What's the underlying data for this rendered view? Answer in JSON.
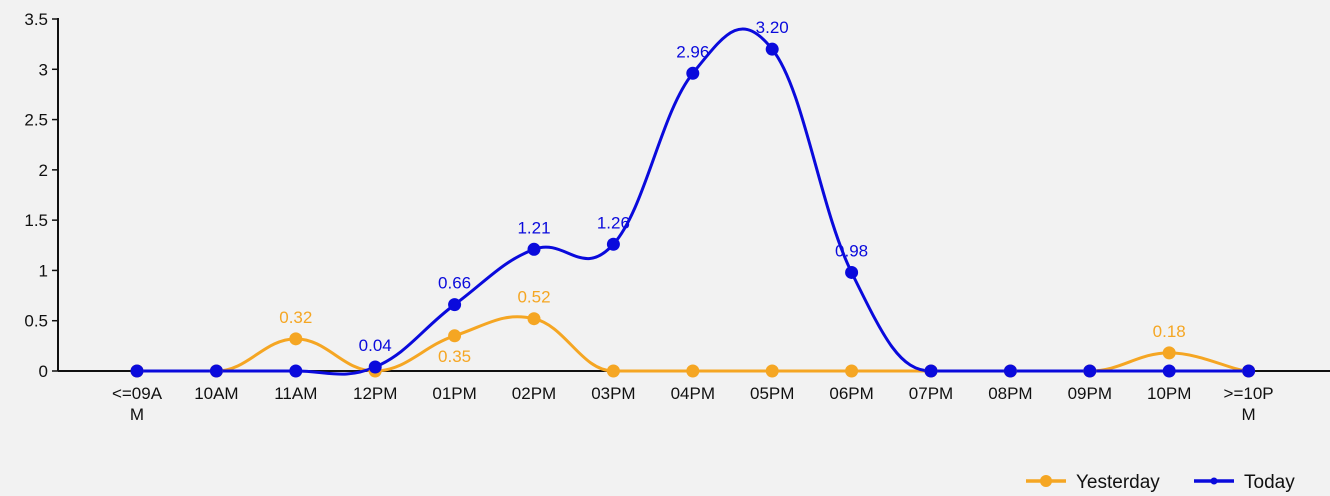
{
  "chart_data": {
    "type": "line",
    "title": "",
    "xlabel": "",
    "ylabel": "",
    "categories": [
      "<=09AM",
      "10AM",
      "11AM",
      "12PM",
      "01PM",
      "02PM",
      "03PM",
      "04PM",
      "05PM",
      "06PM",
      "07PM",
      "08PM",
      "09PM",
      "10PM",
      ">=10PM"
    ],
    "category_display": [
      [
        "<=09A",
        "M"
      ],
      [
        "10AM"
      ],
      [
        "11AM"
      ],
      [
        "12PM"
      ],
      [
        "01PM"
      ],
      [
        "02PM"
      ],
      [
        "03PM"
      ],
      [
        "04PM"
      ],
      [
        "05PM"
      ],
      [
        "06PM"
      ],
      [
        "07PM"
      ],
      [
        "08PM"
      ],
      [
        "09PM"
      ],
      [
        "10PM"
      ],
      [
        ">=10P",
        "M"
      ]
    ],
    "ylim": [
      0,
      3.5
    ],
    "yticks": [
      0,
      0.5,
      1,
      1.5,
      2,
      2.5,
      3,
      3.5
    ],
    "ytick_labels": [
      "0",
      "0.5",
      "1",
      "1.5",
      "2",
      "2.5",
      "3",
      "3.5"
    ],
    "grid": false,
    "legend_position": "bottom-right",
    "series": [
      {
        "name": "Yesterday",
        "color": "#f5a623",
        "values": [
          0,
          0,
          0.32,
          0,
          0.35,
          0.52,
          0,
          0,
          0,
          0,
          0,
          0,
          0,
          0.18,
          0
        ],
        "data_labels": [
          "",
          "",
          "0.32",
          "",
          "0.35",
          "0.52",
          "",
          "",
          "",
          "",
          "",
          "",
          "",
          "0.18",
          ""
        ],
        "label_position": [
          "",
          "",
          "above",
          "",
          "below",
          "above",
          "",
          "",
          "",
          "",
          "",
          "",
          "",
          "above",
          ""
        ]
      },
      {
        "name": "Today",
        "color": "#0a0adc",
        "values": [
          0,
          0,
          0,
          0.04,
          0.66,
          1.21,
          1.26,
          2.96,
          3.2,
          0.98,
          0,
          0,
          0,
          0,
          0
        ],
        "data_labels": [
          "",
          "",
          "",
          "0.04",
          "0.66",
          "1.21",
          "1.26",
          "2.96",
          "3.20",
          "0.98",
          "",
          "",
          "",
          "",
          ""
        ],
        "label_position": [
          "",
          "",
          "",
          "above",
          "above",
          "above",
          "above",
          "above",
          "above",
          "above",
          "",
          "",
          "",
          "",
          ""
        ]
      }
    ]
  }
}
